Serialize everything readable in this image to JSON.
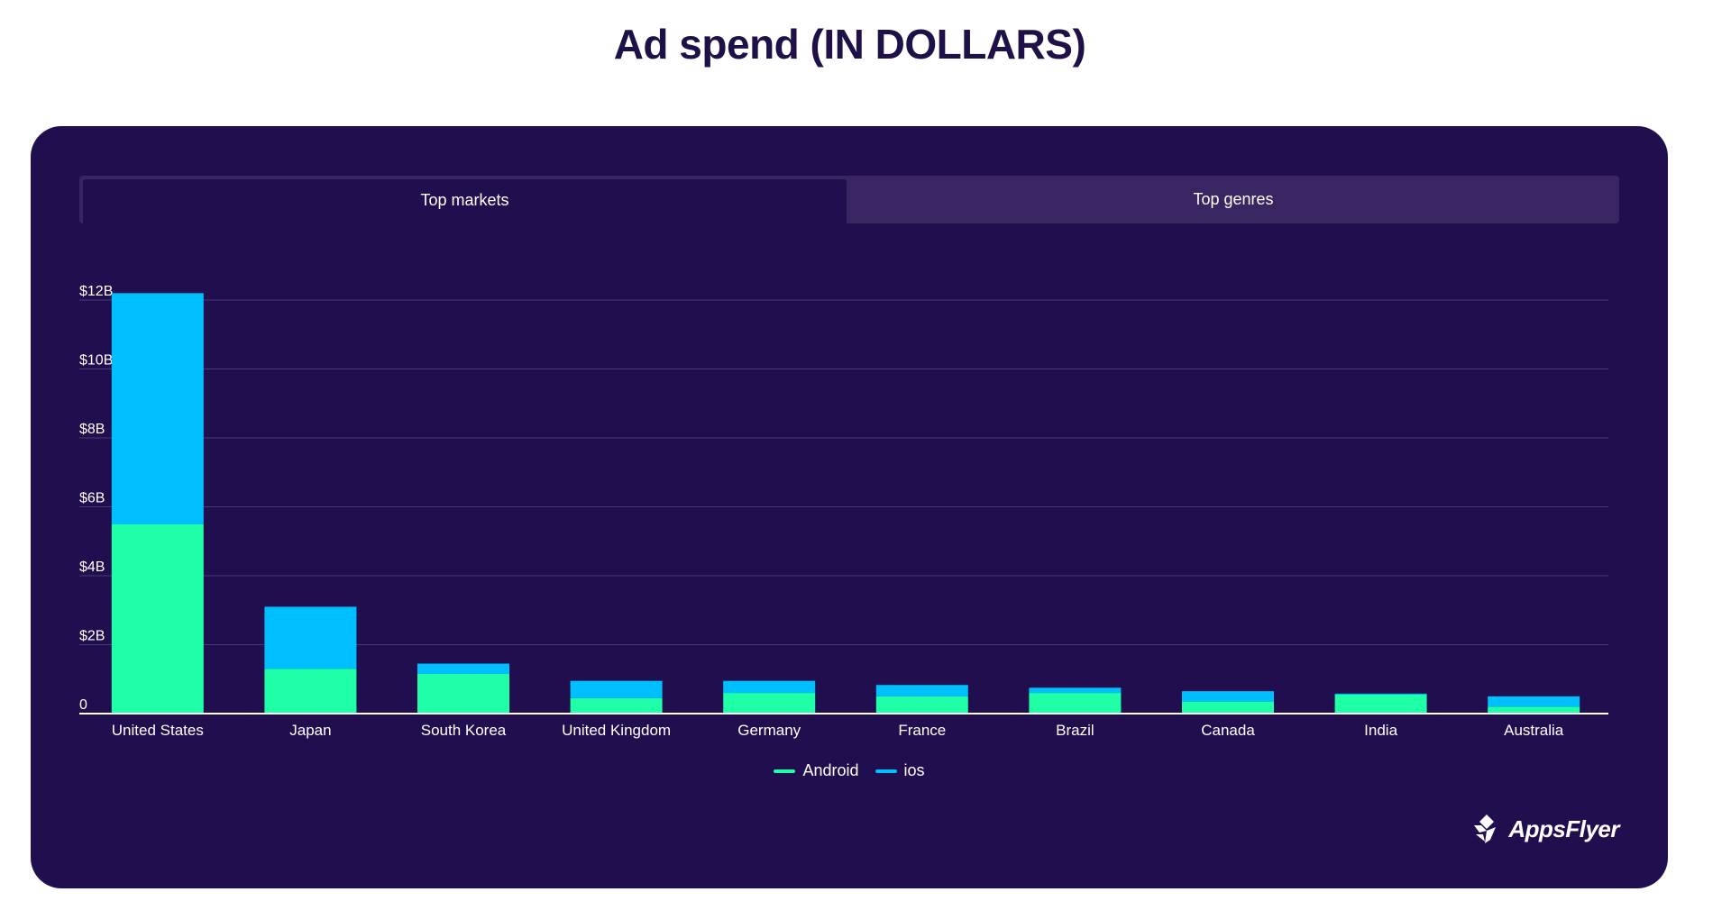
{
  "page": {
    "title": "Ad spend (IN DOLLARS)"
  },
  "tabs": [
    {
      "label": "Top markets",
      "active": true
    },
    {
      "label": "Top genres",
      "active": false
    }
  ],
  "colors": {
    "android": "#1effa8",
    "ios": "#00bfff",
    "background": "#210e4f",
    "grid": "#4a3a72",
    "axis": "#ffffff"
  },
  "logo": {
    "text": "AppsFlyer",
    "icon": "appsflyer-logo-icon"
  },
  "chart_data": {
    "type": "bar",
    "stacked": true,
    "title": "",
    "xlabel": "",
    "ylabel": "",
    "categories": [
      "United States",
      "Japan",
      "South Korea",
      "United Kingdom",
      "Germany",
      "France",
      "Brazil",
      "Canada",
      "India",
      "Australia"
    ],
    "series": [
      {
        "name": "Android",
        "values": [
          5.5,
          1.3,
          1.15,
          0.45,
          0.6,
          0.5,
          0.6,
          0.35,
          0.55,
          0.2
        ]
      },
      {
        "name": "ios",
        "values": [
          6.7,
          1.8,
          0.3,
          0.5,
          0.35,
          0.33,
          0.15,
          0.3,
          0.03,
          0.3
        ]
      }
    ],
    "yticks": [
      {
        "value": 0,
        "label": "0"
      },
      {
        "value": 2,
        "label": "$2B"
      },
      {
        "value": 4,
        "label": "$4B"
      },
      {
        "value": 6,
        "label": "$6B"
      },
      {
        "value": 8,
        "label": "$8B"
      },
      {
        "value": 10,
        "label": "$10B"
      },
      {
        "value": 12,
        "label": "$12B"
      }
    ],
    "ylim": [
      0,
      12
    ],
    "grid": true,
    "legend_position": "bottom-center"
  }
}
